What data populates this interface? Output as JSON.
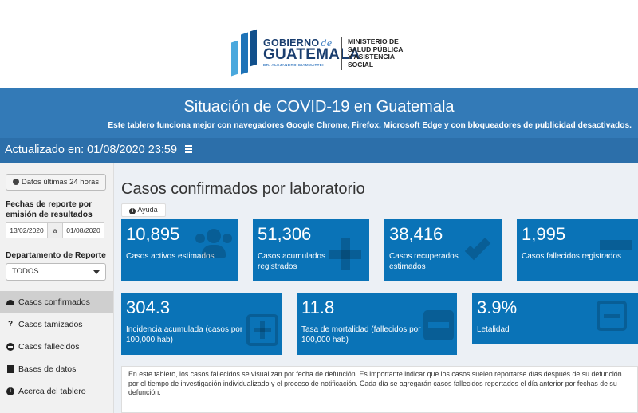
{
  "header": {
    "logo": {
      "gobierno": "GOBIERNO",
      "de": "de",
      "guatemala": "GUATEMALA",
      "subline": "DR. ALEJANDRO GIAMMATTEI",
      "ministerio_lines": [
        "MINISTERIO DE",
        "SALUD PÚBLICA",
        "Y ASISTENCIA",
        "SOCIAL"
      ]
    }
  },
  "banner": {
    "title": "Situación de COVID-19 en Guatemala",
    "subtitle": "Este tablero funciona mejor con navegadores Google Chrome, Firefox, Microsoft Edge y con bloqueadores de publicidad desactivados."
  },
  "navbar": {
    "updated": "Actualizado en: 01/08/2020 23:59",
    "menu_icon": "hamburger-icon"
  },
  "sidebar": {
    "last24_button": "Datos últimas 24 horas",
    "fechas_label_line1": "Fechas de reporte por",
    "fechas_label_line2": "emisión de resultados",
    "date_start": "13/02/2020",
    "date_separator": "a",
    "date_end": "01/08/2020",
    "depto_label": "Departamento de Reporte",
    "depto_value": "TODOS",
    "menu": [
      {
        "label": "Casos confirmados",
        "icon": "gauge-icon",
        "active": true
      },
      {
        "label": "Casos tamizados",
        "icon": "question-icon",
        "active": false
      },
      {
        "label": "Casos fallecidos",
        "icon": "minus-circle-icon",
        "active": false
      },
      {
        "label": "Bases de datos",
        "icon": "file-icon",
        "active": false
      },
      {
        "label": "Acerca del tablero",
        "icon": "info-icon",
        "active": false
      }
    ]
  },
  "main": {
    "title": "Casos confirmados por laboratorio",
    "help_button": "Ayuda",
    "cards": [
      {
        "value": "10,895",
        "label": "Casos activos estimados",
        "icon": "users-icon"
      },
      {
        "value": "51,306",
        "label": "Casos acumulados registrados",
        "icon": "plus-icon"
      },
      {
        "value": "38,416",
        "label": "Casos recuperados estimados",
        "icon": "check-icon"
      },
      {
        "value": "1,995",
        "label": "Casos fallecidos registrados",
        "icon": "minus-icon"
      },
      {
        "value": "304.3",
        "label": "Incidencia acumulada (casos por 100,000 hab)",
        "icon": "plus-square-icon"
      },
      {
        "value": "11.8",
        "label": "Tasa de mortalidad (fallecidos por 100,000 hab)",
        "icon": "minus-square-icon"
      },
      {
        "value": "3.9%",
        "label": "Letalidad",
        "icon": "minus-square-outline-icon"
      }
    ],
    "note": "En este tablero, los casos fallecidos se visualizan por fecha de defunción. Es importante indicar que los casos suelen reportarse días después de su defunción por el tiempo de investigación individualizado y el proceso de notificación. Cada día se agregarán casos fallecidos reportados el día anterior por fechas de su defunción."
  },
  "colors": {
    "banner": "#337ab7",
    "navbar": "#2c6faa",
    "card": "#0a73b7",
    "background": "#ecf0f5"
  }
}
